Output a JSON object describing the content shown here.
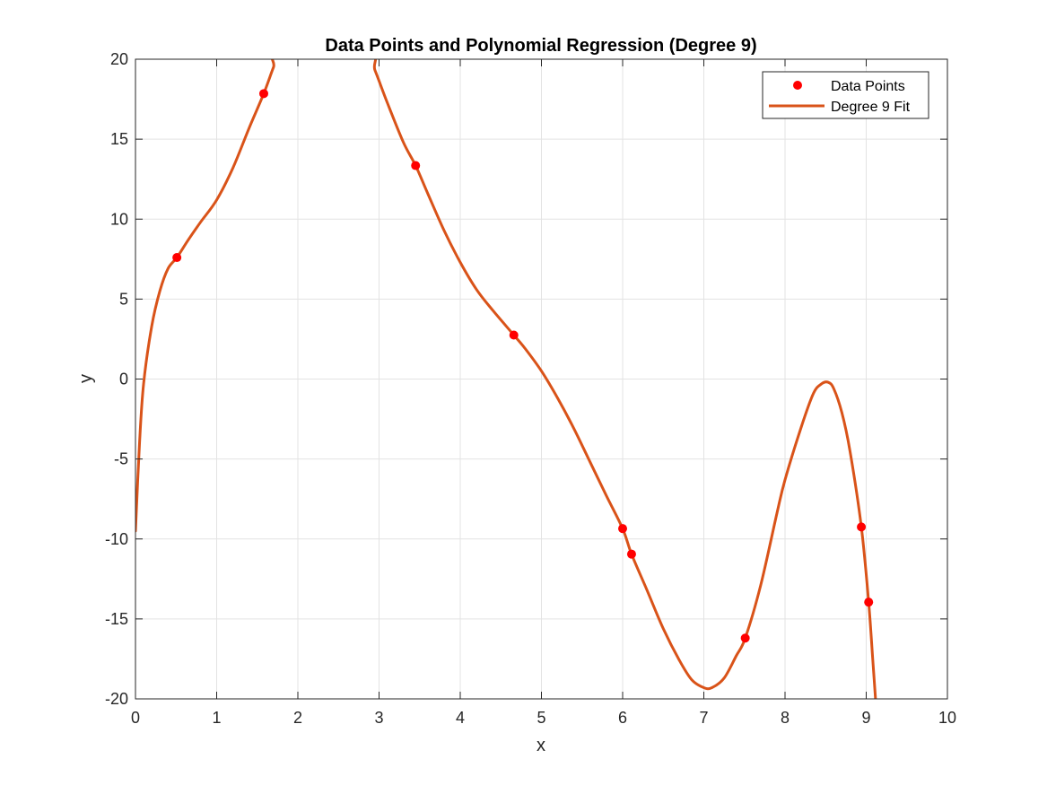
{
  "chart_data": {
    "type": "line",
    "title": "Data Points and Polynomial Regression (Degree 9)",
    "xlabel": "x",
    "ylabel": "y",
    "xlim": [
      0,
      10
    ],
    "ylim": [
      -20,
      20
    ],
    "x_ticks": [
      0,
      1,
      2,
      3,
      4,
      5,
      6,
      7,
      8,
      9,
      10
    ],
    "y_ticks": [
      -20,
      -15,
      -10,
      -5,
      0,
      5,
      10,
      15,
      20
    ],
    "grid": true,
    "legend_position": "top-right",
    "series": [
      {
        "name": "Data Points",
        "kind": "scatter",
        "color": "#ff0000",
        "points": [
          {
            "x": 0.51,
            "y": 7.6
          },
          {
            "x": 1.58,
            "y": 17.85
          },
          {
            "x": 3.45,
            "y": 13.35
          },
          {
            "x": 4.66,
            "y": 2.75
          },
          {
            "x": 6.0,
            "y": -9.35
          },
          {
            "x": 6.11,
            "y": -10.95
          },
          {
            "x": 7.51,
            "y": -16.2
          },
          {
            "x": 8.94,
            "y": -9.25
          },
          {
            "x": 9.03,
            "y": -13.95
          }
        ]
      },
      {
        "name": "Degree 9 Fit",
        "kind": "line",
        "color": "#d95319",
        "points": [
          {
            "x": 0.0,
            "y": -9.5
          },
          {
            "x": 0.05,
            "y": -4.0
          },
          {
            "x": 0.1,
            "y": -0.3
          },
          {
            "x": 0.2,
            "y": 3.3
          },
          {
            "x": 0.3,
            "y": 5.5
          },
          {
            "x": 0.4,
            "y": 6.9
          },
          {
            "x": 0.51,
            "y": 7.6
          },
          {
            "x": 0.65,
            "y": 8.7
          },
          {
            "x": 0.8,
            "y": 9.8
          },
          {
            "x": 1.0,
            "y": 11.2
          },
          {
            "x": 1.2,
            "y": 13.2
          },
          {
            "x": 1.4,
            "y": 15.7
          },
          {
            "x": 1.58,
            "y": 17.85
          },
          {
            "x": 1.7,
            "y": 19.5
          },
          {
            "x": 1.78,
            "y": 20.4
          },
          {
            "x": 2.85,
            "y": 20.4
          },
          {
            "x": 2.95,
            "y": 19.3
          },
          {
            "x": 3.1,
            "y": 17.3
          },
          {
            "x": 3.3,
            "y": 14.8
          },
          {
            "x": 3.45,
            "y": 13.35
          },
          {
            "x": 3.6,
            "y": 11.6
          },
          {
            "x": 3.8,
            "y": 9.3
          },
          {
            "x": 4.0,
            "y": 7.3
          },
          {
            "x": 4.2,
            "y": 5.6
          },
          {
            "x": 4.4,
            "y": 4.3
          },
          {
            "x": 4.66,
            "y": 2.75
          },
          {
            "x": 4.8,
            "y": 1.9
          },
          {
            "x": 5.0,
            "y": 0.5
          },
          {
            "x": 5.2,
            "y": -1.2
          },
          {
            "x": 5.4,
            "y": -3.1
          },
          {
            "x": 5.6,
            "y": -5.2
          },
          {
            "x": 5.8,
            "y": -7.3
          },
          {
            "x": 6.0,
            "y": -9.35
          },
          {
            "x": 6.11,
            "y": -10.95
          },
          {
            "x": 6.3,
            "y": -13.2
          },
          {
            "x": 6.5,
            "y": -15.6
          },
          {
            "x": 6.7,
            "y": -17.6
          },
          {
            "x": 6.85,
            "y": -18.8
          },
          {
            "x": 7.0,
            "y": -19.3
          },
          {
            "x": 7.1,
            "y": -19.3
          },
          {
            "x": 7.25,
            "y": -18.7
          },
          {
            "x": 7.4,
            "y": -17.3
          },
          {
            "x": 7.51,
            "y": -16.2
          },
          {
            "x": 7.7,
            "y": -12.9
          },
          {
            "x": 7.9,
            "y": -8.4
          },
          {
            "x": 8.0,
            "y": -6.3
          },
          {
            "x": 8.2,
            "y": -3.0
          },
          {
            "x": 8.35,
            "y": -0.9
          },
          {
            "x": 8.45,
            "y": -0.3
          },
          {
            "x": 8.53,
            "y": -0.2
          },
          {
            "x": 8.6,
            "y": -0.6
          },
          {
            "x": 8.7,
            "y": -2.1
          },
          {
            "x": 8.8,
            "y": -4.5
          },
          {
            "x": 8.94,
            "y": -9.25
          },
          {
            "x": 9.03,
            "y": -13.95
          },
          {
            "x": 9.08,
            "y": -17.5
          },
          {
            "x": 9.12,
            "y": -20.4
          }
        ]
      }
    ]
  }
}
